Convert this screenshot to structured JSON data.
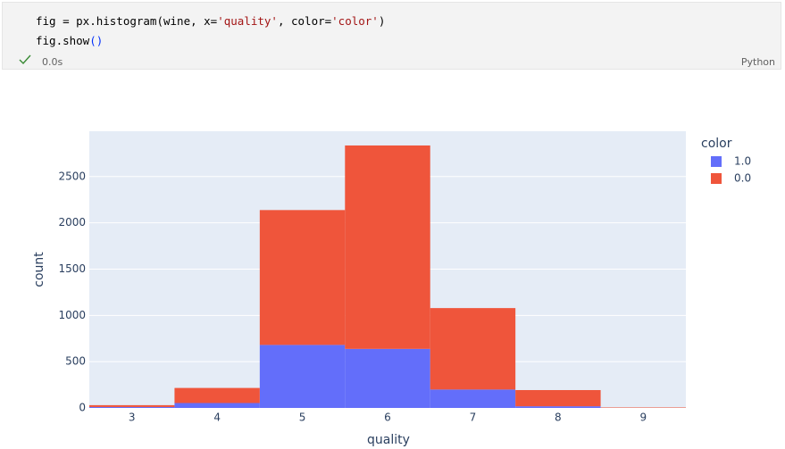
{
  "cell": {
    "code": [
      [
        "fig = px.histogram(wine, x=",
        "'quality'",
        ", color=",
        "'color'",
        ")"
      ],
      [
        "fig.show",
        "()"
      ]
    ],
    "time": "0.0s",
    "language": "Python"
  },
  "chart_data": {
    "type": "histogram",
    "barmode": "stack",
    "x_label": "quality",
    "y_label": "count",
    "bins": [
      2.5,
      3.5,
      4.5,
      5.5,
      6.5,
      7.5,
      8.5,
      9.5
    ],
    "series": [
      {
        "name": "1.0",
        "color": "#636efa",
        "values": [
          10,
          53,
          681,
          638,
          199,
          18,
          null
        ]
      },
      {
        "name": "0.0",
        "color": "#ef553b",
        "values": [
          20,
          163,
          1457,
          2198,
          880,
          175,
          5
        ]
      }
    ],
    "legend_title": "color",
    "legend": "right",
    "xlim": [
      2.5,
      9.5
    ],
    "xticks": [
      3,
      4,
      5,
      6,
      7,
      8,
      9
    ],
    "ylim": [
      0,
      2990
    ],
    "yticks": [
      0,
      500,
      1000,
      1500,
      2000,
      2500
    ],
    "grid": true,
    "background": "#e5ecf6"
  }
}
